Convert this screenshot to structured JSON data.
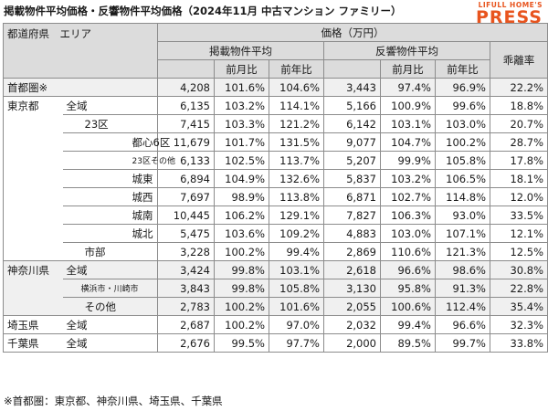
{
  "title": "掲載物件平均価格・反響物件平均価格（2024年11月 中古マンション ファミリー）",
  "logo": {
    "line1": "LIFULL HOME'S",
    "line2": "PRESS"
  },
  "header": {
    "area": "都道府県　エリア",
    "price": "価格（万円）",
    "listed": "掲載物件平均",
    "response": "反響物件平均",
    "mom": "前月比",
    "yoy": "前年比",
    "gap": "乖離率"
  },
  "rows": [
    {
      "pref": "首都圏※",
      "area": "",
      "l": "4,208",
      "lm": "101.6%",
      "ly": "104.6%",
      "r": "3,443",
      "rm": "97.4%",
      "ry": "96.9%",
      "g": "22.2%"
    },
    {
      "pref": "東京都",
      "area": "全域",
      "l": "6,135",
      "lm": "103.2%",
      "ly": "114.1%",
      "r": "5,166",
      "rm": "100.9%",
      "ry": "99.6%",
      "g": "18.8%"
    },
    {
      "pref": "",
      "area": "23区",
      "l": "7,415",
      "lm": "103.3%",
      "ly": "121.2%",
      "r": "6,142",
      "rm": "103.1%",
      "ry": "103.0%",
      "g": "20.7%"
    },
    {
      "pref": "",
      "area": "都心6区",
      "l": "11,679",
      "lm": "101.7%",
      "ly": "131.5%",
      "r": "9,077",
      "rm": "104.7%",
      "ry": "100.2%",
      "g": "28.7%"
    },
    {
      "pref": "",
      "area": "23区その他",
      "l": "6,133",
      "lm": "102.5%",
      "ly": "113.7%",
      "r": "5,207",
      "rm": "99.9%",
      "ry": "105.8%",
      "g": "17.8%"
    },
    {
      "pref": "",
      "area": "城東",
      "l": "6,894",
      "lm": "104.9%",
      "ly": "132.6%",
      "r": "5,837",
      "rm": "103.2%",
      "ry": "106.5%",
      "g": "18.1%"
    },
    {
      "pref": "",
      "area": "城西",
      "l": "7,697",
      "lm": "98.9%",
      "ly": "113.8%",
      "r": "6,871",
      "rm": "102.7%",
      "ry": "114.8%",
      "g": "12.0%"
    },
    {
      "pref": "",
      "area": "城南",
      "l": "10,445",
      "lm": "106.2%",
      "ly": "129.1%",
      "r": "7,827",
      "rm": "106.3%",
      "ry": "93.0%",
      "g": "33.5%"
    },
    {
      "pref": "",
      "area": "城北",
      "l": "5,475",
      "lm": "103.6%",
      "ly": "109.2%",
      "r": "4,883",
      "rm": "103.0%",
      "ry": "107.1%",
      "g": "12.1%"
    },
    {
      "pref": "",
      "area": "市部",
      "l": "3,228",
      "lm": "100.2%",
      "ly": "99.4%",
      "r": "2,869",
      "rm": "110.6%",
      "ry": "121.3%",
      "g": "12.5%"
    },
    {
      "pref": "神奈川県",
      "area": "全域",
      "l": "3,424",
      "lm": "99.8%",
      "ly": "103.1%",
      "r": "2,618",
      "rm": "96.6%",
      "ry": "98.6%",
      "g": "30.8%"
    },
    {
      "pref": "",
      "area": "横浜市・川崎市",
      "l": "3,843",
      "lm": "99.8%",
      "ly": "105.8%",
      "r": "3,130",
      "rm": "95.8%",
      "ry": "91.3%",
      "g": "22.8%"
    },
    {
      "pref": "",
      "area": "その他",
      "l": "2,783",
      "lm": "100.2%",
      "ly": "101.6%",
      "r": "2,055",
      "rm": "100.6%",
      "ry": "112.4%",
      "g": "35.4%"
    },
    {
      "pref": "埼玉県",
      "area": "全域",
      "l": "2,687",
      "lm": "100.2%",
      "ly": "97.0%",
      "r": "2,032",
      "rm": "99.4%",
      "ry": "96.6%",
      "g": "32.3%"
    },
    {
      "pref": "千葉県",
      "area": "全域",
      "l": "2,676",
      "lm": "99.5%",
      "ly": "97.7%",
      "r": "2,000",
      "rm": "89.5%",
      "ry": "99.7%",
      "g": "33.8%"
    }
  ],
  "footnote": "※首都圏：東京都、神奈川県、埼玉県、千葉県"
}
